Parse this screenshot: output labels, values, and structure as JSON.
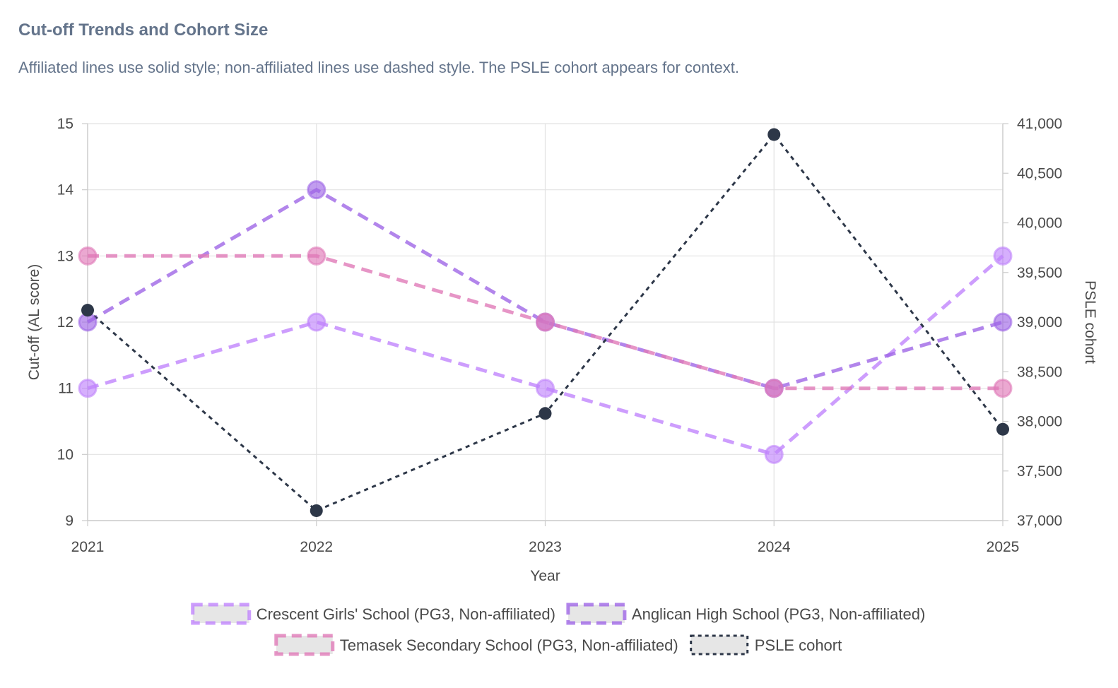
{
  "header": {
    "title": "Cut-off Trends and Cohort Size",
    "subtitle": "Affiliated lines use solid style; non-affiliated lines use dashed style. The PSLE cohort appears for context."
  },
  "chart_data": {
    "type": "line",
    "categories": [
      "2021",
      "2022",
      "2023",
      "2024",
      "2025"
    ],
    "xlabel": "Year",
    "ylabel": "Cut-off (AL score)",
    "ylim": [
      9,
      15
    ],
    "yticks": [
      "9",
      "10",
      "11",
      "12",
      "13",
      "14",
      "15"
    ],
    "y2label": "PSLE cohort",
    "y2lim": [
      37000,
      41000
    ],
    "y2ticks": [
      "37,000",
      "37,500",
      "38,000",
      "38,500",
      "39,000",
      "39,500",
      "40,000",
      "40,500",
      "41,000"
    ],
    "grid": true,
    "legend_position": "bottom",
    "series": [
      {
        "name": "Crescent Girls' School (PG3, Non-affiliated)",
        "axis": "left",
        "color": "#c084fc",
        "style": "dashed",
        "values": [
          11,
          12,
          11,
          10,
          13
        ]
      },
      {
        "name": "Anglican High School (PG3, Non-affiliated)",
        "axis": "left",
        "color": "#9f67e6",
        "style": "dashed",
        "values": [
          12,
          14,
          12,
          11,
          12
        ]
      },
      {
        "name": "Temasek Secondary School (PG3, Non-affiliated)",
        "axis": "left",
        "color": "#e07ab8",
        "style": "dashed",
        "values": [
          13,
          13,
          12,
          11,
          11
        ]
      },
      {
        "name": "PSLE cohort",
        "axis": "right",
        "color": "#2d3748",
        "style": "dotted",
        "values": [
          39120,
          37100,
          38080,
          40890,
          37920
        ]
      }
    ]
  }
}
